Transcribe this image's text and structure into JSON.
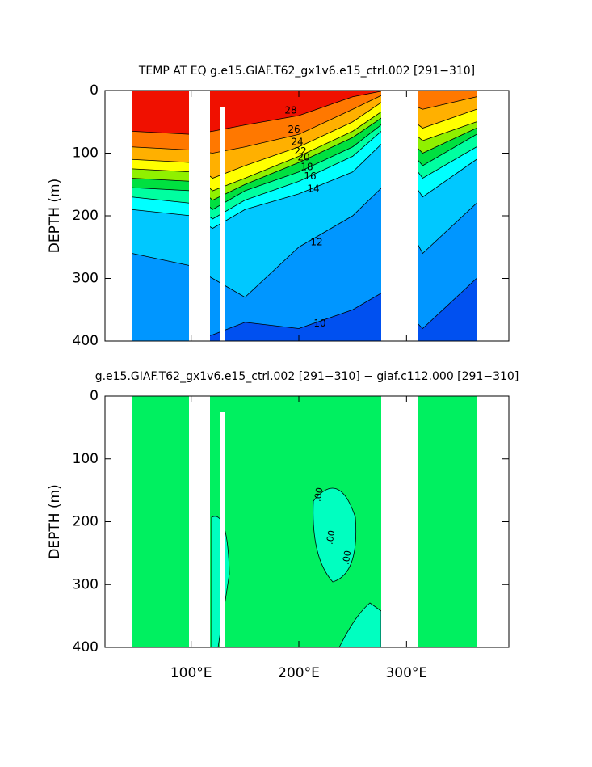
{
  "chart_data": [
    {
      "type": "contour",
      "title": "TEMP AT EQ g.e15.GIAF.T62_gx1v6.e15_ctrl.002 [291−310]",
      "ylabel": "DEPTH (m)",
      "xlim": [
        20,
        395
      ],
      "xticks": [
        100,
        200,
        300
      ],
      "xtick_labels": false,
      "ylim": [
        0,
        400
      ],
      "invert_y": true,
      "yticks": [
        0,
        100,
        200,
        300,
        400
      ],
      "x": [
        45,
        100,
        120,
        150,
        200,
        250,
        280,
        315,
        365
      ],
      "contours": [
        {
          "level": 28,
          "depths": [
            65,
            70,
            65,
            55,
            40,
            10,
            0,
            0,
            0
          ]
        },
        {
          "level": 26,
          "depths": [
            90,
            95,
            100,
            90,
            70,
            30,
            5,
            30,
            10
          ]
        },
        {
          "level": 24,
          "depths": [
            110,
            115,
            140,
            120,
            90,
            50,
            15,
            60,
            30
          ]
        },
        {
          "level": 22,
          "depths": [
            125,
            130,
            160,
            140,
            105,
            65,
            30,
            80,
            50
          ]
        },
        {
          "level": 20,
          "depths": [
            140,
            145,
            175,
            150,
            115,
            75,
            40,
            100,
            60
          ]
        },
        {
          "level": 18,
          "depths": [
            155,
            160,
            190,
            160,
            130,
            90,
            50,
            120,
            70
          ]
        },
        {
          "level": 16,
          "depths": [
            170,
            180,
            205,
            175,
            145,
            105,
            60,
            140,
            90
          ]
        },
        {
          "level": 14,
          "depths": [
            190,
            200,
            220,
            190,
            165,
            130,
            80,
            170,
            110
          ]
        },
        {
          "level": 12,
          "depths": [
            260,
            280,
            300,
            330,
            250,
            200,
            150,
            260,
            180
          ]
        },
        {
          "level": 10,
          "depths": [
            400,
            400,
            390,
            370,
            380,
            350,
            320,
            380,
            300
          ]
        }
      ],
      "colors": [
        "#f01000",
        "#ff7800",
        "#ffb000",
        "#ffff00",
        "#90f000",
        "#00e040",
        "#00ffa0",
        "#00ffff",
        "#00c8ff",
        "#0096ff",
        "#0050f0"
      ]
    },
    {
      "type": "difference",
      "title": "g.e15.GIAF.T62_gx1v6.e15_ctrl.002 [291−310] − giaf.c112.000 [291−310]",
      "ylabel": "DEPTH (m)",
      "xlim": [
        20,
        395
      ],
      "xticks": [
        {
          "value": 100,
          "label": "100°E"
        },
        {
          "value": 200,
          "label": "200°E"
        },
        {
          "value": 300,
          "label": "300°E"
        }
      ],
      "xtick_labels": true,
      "ylim": [
        0,
        400
      ],
      "invert_y": true,
      "yticks": [
        0,
        100,
        200,
        300,
        400
      ],
      "x": [
        45,
        365
      ],
      "fill_color": "#00f060",
      "patch_color": "#00ffc0",
      "annotations": [
        ".00",
        ".00",
        ".00"
      ]
    }
  ]
}
